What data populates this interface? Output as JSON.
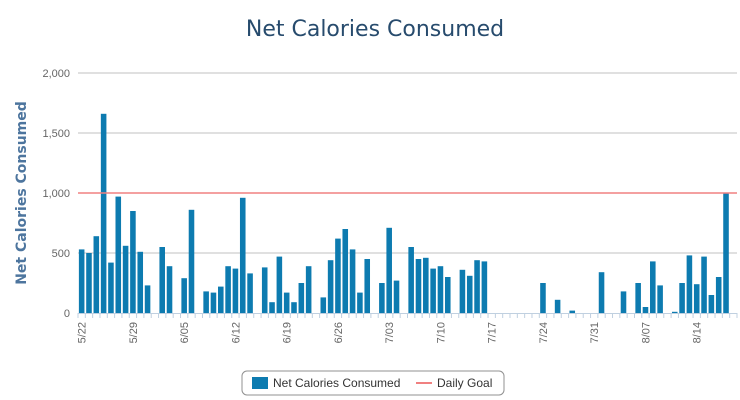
{
  "chart_data": {
    "type": "bar",
    "title": "Net Calories Consumed",
    "ylabel": "Net Calories Consumed",
    "xlabel": "",
    "ylim": [
      0,
      2000
    ],
    "yticks": [
      0,
      500,
      1000,
      1500,
      2000
    ],
    "ytick_labels": [
      "0",
      "500",
      "1,000",
      "1,500",
      "2,000"
    ],
    "x_tick_labels": [
      {
        "day_index": 0,
        "label": "5/22"
      },
      {
        "day_index": 7,
        "label": "5/29"
      },
      {
        "day_index": 14,
        "label": "6/05"
      },
      {
        "day_index": 21,
        "label": "6/12"
      },
      {
        "day_index": 28,
        "label": "6/19"
      },
      {
        "day_index": 35,
        "label": "6/26"
      },
      {
        "day_index": 42,
        "label": "7/03"
      },
      {
        "day_index": 49,
        "label": "7/10"
      },
      {
        "day_index": 56,
        "label": "7/17"
      },
      {
        "day_index": 63,
        "label": "7/24"
      },
      {
        "day_index": 70,
        "label": "7/31"
      },
      {
        "day_index": 77,
        "label": "8/07"
      },
      {
        "day_index": 84,
        "label": "8/14"
      }
    ],
    "series": [
      {
        "name": "Net Calories Consumed",
        "color": "#0d7bb0",
        "values": [
          530,
          500,
          640,
          1660,
          420,
          970,
          560,
          850,
          510,
          230,
          0,
          550,
          390,
          0,
          290,
          860,
          0,
          180,
          170,
          220,
          390,
          370,
          960,
          330,
          0,
          380,
          90,
          470,
          170,
          90,
          250,
          390,
          0,
          130,
          440,
          620,
          700,
          530,
          170,
          450,
          0,
          250,
          710,
          270,
          0,
          550,
          450,
          460,
          370,
          390,
          300,
          0,
          360,
          310,
          440,
          430,
          0,
          0,
          0,
          0,
          0,
          0,
          0,
          250,
          0,
          110,
          0,
          20,
          0,
          0,
          0,
          340,
          0,
          0,
          180,
          0,
          250,
          50,
          430,
          230,
          0,
          10,
          250,
          480,
          240,
          470,
          150,
          300,
          1000,
          0
        ]
      },
      {
        "name": "Daily Goal",
        "color": "#f08080",
        "value": 1000
      }
    ],
    "legend": {
      "placement": "bottom-center"
    },
    "grid": true
  }
}
